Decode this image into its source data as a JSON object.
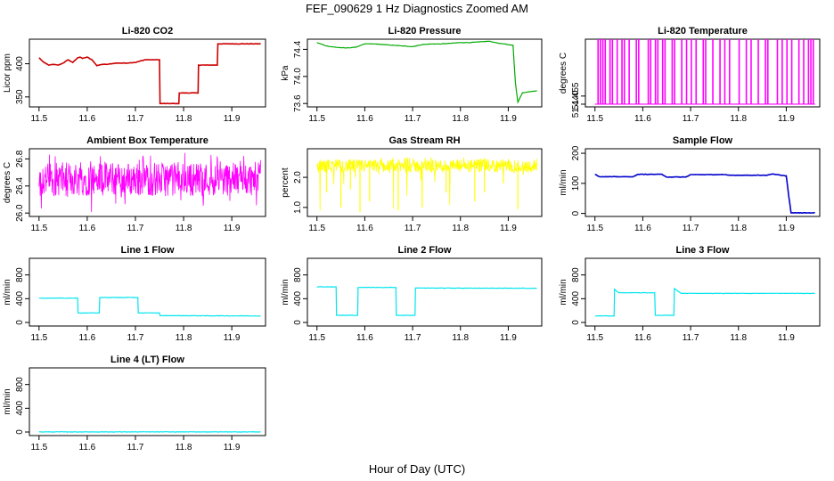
{
  "figure": {
    "title": "FEF_090629  1 Hz Diagnostics Zoomed AM",
    "xlabel": "Hour of Day (UTC)"
  },
  "chart_data": [
    {
      "type": "line",
      "title": "Li-820 CO2",
      "ylabel": "Licor ppm",
      "color": "#cc0000",
      "xlim": [
        11.48,
        11.97
      ],
      "ylim": [
        335,
        437
      ],
      "x_ticks": [
        "11.5",
        "11.6",
        "11.7",
        "11.8",
        "11.9"
      ],
      "y_ticks": [
        "350",
        "400"
      ],
      "y_tick_values": [
        350,
        400
      ],
      "series": [
        {
          "x": [
            11.5,
            11.51,
            11.52,
            11.53,
            11.54,
            11.55,
            11.56,
            11.57,
            11.58,
            11.585,
            11.59,
            11.6,
            11.61,
            11.62,
            11.63,
            11.64,
            11.66,
            11.68,
            11.7,
            11.72,
            11.73,
            11.75,
            11.751,
            11.79,
            11.791,
            11.83,
            11.831,
            11.87,
            11.871,
            11.96
          ],
          "y": [
            409,
            402,
            398,
            399,
            398,
            401,
            406,
            402,
            409,
            410,
            408,
            410,
            406,
            397,
            399,
            399,
            401,
            401,
            402,
            406,
            406,
            406,
            340,
            340,
            356,
            356,
            398,
            398,
            430,
            430
          ]
        }
      ]
    },
    {
      "type": "line",
      "title": "Li-820 Pressure",
      "ylabel": "kPa",
      "color": "#00aa00",
      "xlim": [
        11.48,
        11.97
      ],
      "ylim": [
        73.55,
        74.55
      ],
      "x_ticks": [
        "11.5",
        "11.6",
        "11.7",
        "11.8",
        "11.9"
      ],
      "y_ticks": [
        "73.6",
        "74.0",
        "74.4"
      ],
      "y_tick_values": [
        73.6,
        74.0,
        74.4
      ],
      "series": [
        {
          "x": [
            11.5,
            11.52,
            11.54,
            11.56,
            11.58,
            11.6,
            11.62,
            11.64,
            11.66,
            11.68,
            11.7,
            11.72,
            11.74,
            11.76,
            11.78,
            11.8,
            11.82,
            11.84,
            11.86,
            11.88,
            11.9,
            11.91,
            11.915,
            11.92,
            11.93,
            11.95,
            11.96
          ],
          "y": [
            74.5,
            74.45,
            74.43,
            74.42,
            74.43,
            74.48,
            74.48,
            74.47,
            74.46,
            74.45,
            74.44,
            74.47,
            74.48,
            74.48,
            74.49,
            74.5,
            74.5,
            74.51,
            74.52,
            74.49,
            74.47,
            74.46,
            73.9,
            73.62,
            73.76,
            73.78,
            73.79
          ]
        }
      ]
    },
    {
      "type": "line",
      "title": "Li-820 Temperature",
      "ylabel": "degrees C",
      "color": "#ff00ff",
      "xlim": [
        11.48,
        11.97
      ],
      "ylim": [
        51.435,
        51.56
      ],
      "x_ticks": [
        "11.5",
        "11.6",
        "11.7",
        "11.8",
        "11.9"
      ],
      "y_ticks": [
        "51.440",
        "51.455"
      ],
      "y_tick_values": [
        51.44,
        51.455
      ],
      "baseline": 51.44,
      "spike_to": 51.56,
      "spikes": [
        11.505,
        11.51,
        11.515,
        11.52,
        11.53,
        11.535,
        11.545,
        11.555,
        11.56,
        11.57,
        11.585,
        11.59,
        11.61,
        11.615,
        11.625,
        11.63,
        11.64,
        11.645,
        11.66,
        11.665,
        11.68,
        11.69,
        11.7,
        11.71,
        11.725,
        11.73,
        11.745,
        11.76,
        11.77,
        11.78,
        11.8,
        11.815,
        11.825,
        11.84,
        11.855,
        11.86,
        11.88,
        11.89,
        11.9,
        11.91,
        11.925,
        11.935,
        11.945,
        11.95,
        11.955
      ]
    },
    {
      "type": "line",
      "title": "Ambient Box Temperature",
      "ylabel": "degrees C",
      "color": "#ff00ff",
      "xlim": [
        11.48,
        11.97
      ],
      "ylim": [
        25.95,
        26.95
      ],
      "x_ticks": [
        "11.5",
        "11.6",
        "11.7",
        "11.8",
        "11.9"
      ],
      "y_ticks": [
        "26.0",
        "26.4",
        "26.8"
      ],
      "y_tick_values": [
        26.0,
        26.4,
        26.8
      ],
      "noise_band": {
        "x_start": 11.5,
        "x_end": 11.96,
        "low": 26.25,
        "high": 26.75,
        "center": 26.5,
        "min": 26.0,
        "max": 26.9
      }
    },
    {
      "type": "line",
      "title": "Gas Stream RH",
      "ylabel": "percent",
      "color": "#ffff00",
      "xlim": [
        11.48,
        11.97
      ],
      "ylim": [
        0.7,
        2.95
      ],
      "x_ticks": [
        "11.5",
        "11.6",
        "11.7",
        "11.8",
        "11.9"
      ],
      "y_ticks": [
        "1.0",
        "2.0"
      ],
      "y_tick_values": [
        1.0,
        2.0
      ],
      "noise_band": {
        "x_start": 11.5,
        "x_end": 11.96,
        "low": 2.15,
        "high": 2.6,
        "center": 2.35,
        "min": 0.8,
        "max": 2.7
      },
      "dips": [
        [
          11.52,
          1.5
        ],
        [
          11.55,
          1.0
        ],
        [
          11.57,
          1.6
        ],
        [
          11.59,
          0.85
        ],
        [
          11.61,
          1.2
        ],
        [
          11.67,
          0.9
        ],
        [
          11.72,
          1.0
        ],
        [
          11.77,
          1.5
        ],
        [
          11.83,
          1.2
        ],
        [
          11.85,
          1.5
        ],
        [
          11.89,
          1.8
        ],
        [
          11.92,
          0.95
        ]
      ]
    },
    {
      "type": "line",
      "title": "Sample Flow",
      "ylabel": "ml/min",
      "color": "#0000cc",
      "xlim": [
        11.48,
        11.97
      ],
      "ylim": [
        -10,
        215
      ],
      "x_ticks": [
        "11.5",
        "11.6",
        "11.7",
        "11.8",
        "11.9"
      ],
      "y_ticks": [
        "0",
        "100",
        "200"
      ],
      "y_tick_values": [
        0,
        100,
        200
      ],
      "series": [
        {
          "x": [
            11.5,
            11.51,
            11.58,
            11.59,
            11.64,
            11.65,
            11.69,
            11.7,
            11.77,
            11.78,
            11.86,
            11.87,
            11.9,
            11.905,
            11.91,
            11.96
          ],
          "y": [
            130,
            122,
            122,
            130,
            130,
            121,
            121,
            129,
            129,
            127,
            127,
            131,
            125,
            60,
            2,
            2
          ]
        }
      ]
    },
    {
      "type": "line",
      "title": "Line 1 Flow",
      "ylabel": "ml/min",
      "color": "#00e5ee",
      "xlim": [
        11.48,
        11.97
      ],
      "ylim": [
        -60,
        1080
      ],
      "x_ticks": [
        "11.5",
        "11.6",
        "11.7",
        "11.8",
        "11.9"
      ],
      "y_ticks": [
        "0",
        "400",
        "800"
      ],
      "y_tick_values": [
        0,
        400,
        800
      ],
      "series": [
        {
          "x": [
            11.5,
            11.58,
            11.581,
            11.625,
            11.626,
            11.705,
            11.706,
            11.75,
            11.751,
            11.96
          ],
          "y": [
            410,
            410,
            160,
            160,
            420,
            420,
            160,
            160,
            115,
            110
          ]
        }
      ]
    },
    {
      "type": "line",
      "title": "Line 2 Flow",
      "ylabel": "ml/min",
      "color": "#00e5ee",
      "xlim": [
        11.48,
        11.97
      ],
      "ylim": [
        -60,
        1080
      ],
      "x_ticks": [
        "11.5",
        "11.6",
        "11.7",
        "11.8",
        "11.9"
      ],
      "y_ticks": [
        "0",
        "400",
        "800"
      ],
      "y_tick_values": [
        0,
        400,
        800
      ],
      "series": [
        {
          "x": [
            11.5,
            11.54,
            11.541,
            11.585,
            11.586,
            11.665,
            11.666,
            11.705,
            11.706,
            11.96
          ],
          "y": [
            600,
            600,
            120,
            120,
            590,
            590,
            120,
            120,
            580,
            575
          ]
        }
      ]
    },
    {
      "type": "line",
      "title": "Line 3 Flow",
      "ylabel": "ml/min",
      "color": "#00e5ee",
      "xlim": [
        11.48,
        11.97
      ],
      "ylim": [
        -60,
        1080
      ],
      "x_ticks": [
        "11.5",
        "11.6",
        "11.7",
        "11.8",
        "11.9"
      ],
      "y_ticks": [
        "0",
        "400",
        "800"
      ],
      "y_tick_values": [
        0,
        400,
        800
      ],
      "series": [
        {
          "x": [
            11.5,
            11.54,
            11.541,
            11.55,
            11.625,
            11.626,
            11.665,
            11.666,
            11.68,
            11.96
          ],
          "y": [
            110,
            110,
            560,
            500,
            500,
            120,
            120,
            570,
            490,
            490
          ]
        }
      ]
    },
    {
      "type": "line",
      "title": "Line 4 (LT) Flow",
      "ylabel": "ml/min",
      "color": "#00e5ee",
      "xlim": [
        11.48,
        11.97
      ],
      "ylim": [
        -60,
        1080
      ],
      "x_ticks": [
        "11.5",
        "11.6",
        "11.7",
        "11.8",
        "11.9"
      ],
      "y_ticks": [
        "0",
        "400",
        "800"
      ],
      "y_tick_values": [
        0,
        400,
        800
      ],
      "series": [
        {
          "x": [
            11.5,
            11.96
          ],
          "y": [
            2,
            2
          ]
        }
      ]
    }
  ]
}
